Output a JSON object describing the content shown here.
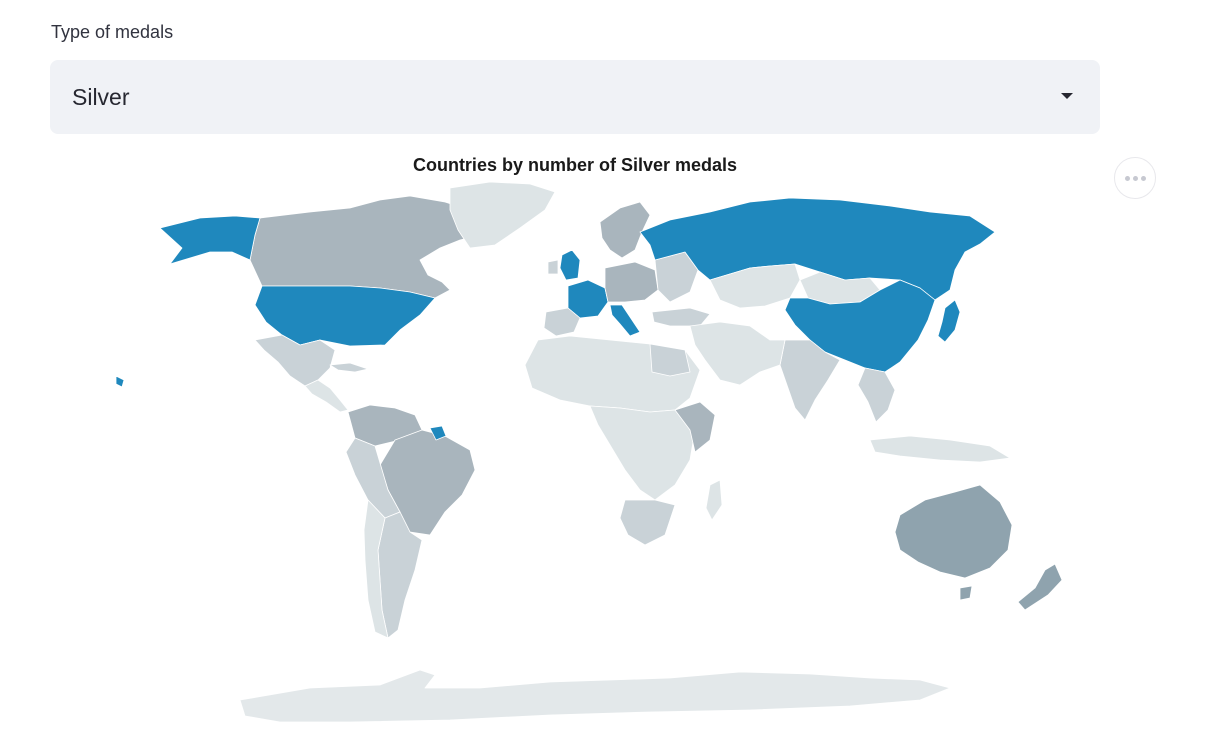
{
  "filter": {
    "label": "Type of medals",
    "selected": "Silver"
  },
  "map": {
    "title": "Countries by number of Silver medals",
    "colors": {
      "top": "#1f88bd",
      "high": "#8fa3ae",
      "mid": "#a9b5bd",
      "low": "#c9d2d7",
      "none": "#dde4e6",
      "antarctica": "#e3e8ea"
    },
    "icons": {
      "dropdown": "chevron-down-icon",
      "menu": "more-horizontal-icon"
    }
  }
}
